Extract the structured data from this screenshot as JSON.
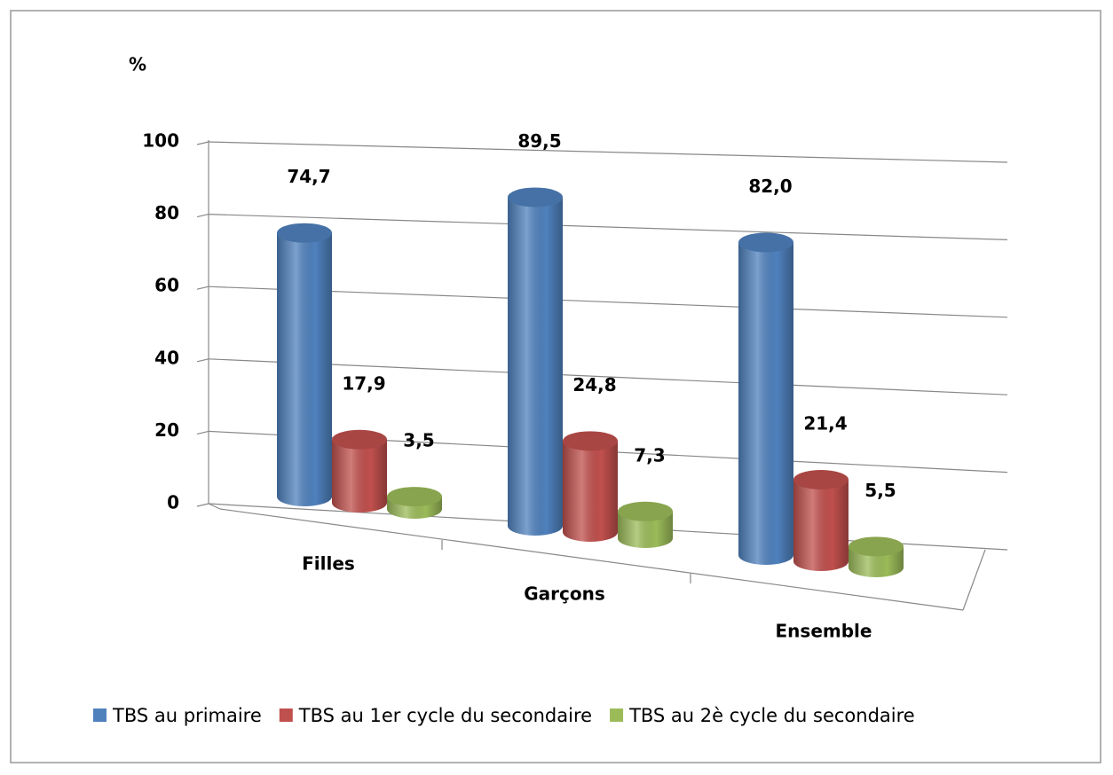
{
  "chart_data": {
    "type": "bar3d",
    "axis_label": "%",
    "categories": [
      "Filles",
      "Garçons",
      "Ensemble"
    ],
    "series": [
      {
        "name": "TBS au primaire",
        "color": "#4f81bd",
        "values": [
          74.7,
          89.5,
          82.0
        ],
        "value_labels": [
          "74,7",
          "89,5",
          "82,0"
        ]
      },
      {
        "name": "TBS au 1er cycle du secondaire",
        "color": "#c0504d",
        "values": [
          17.9,
          24.8,
          21.4
        ],
        "value_labels": [
          "17,9",
          "24,8",
          "21,4"
        ]
      },
      {
        "name": "TBS au 2è cycle du secondaire",
        "color": "#9bbb59",
        "values": [
          3.5,
          7.3,
          5.5
        ],
        "value_labels": [
          "3,5",
          "7,3",
          "5,5"
        ]
      }
    ],
    "ylim": [
      0,
      100
    ],
    "yticks": [
      0,
      20,
      40,
      60,
      80,
      100
    ],
    "grid": true,
    "legend": "bottom"
  }
}
